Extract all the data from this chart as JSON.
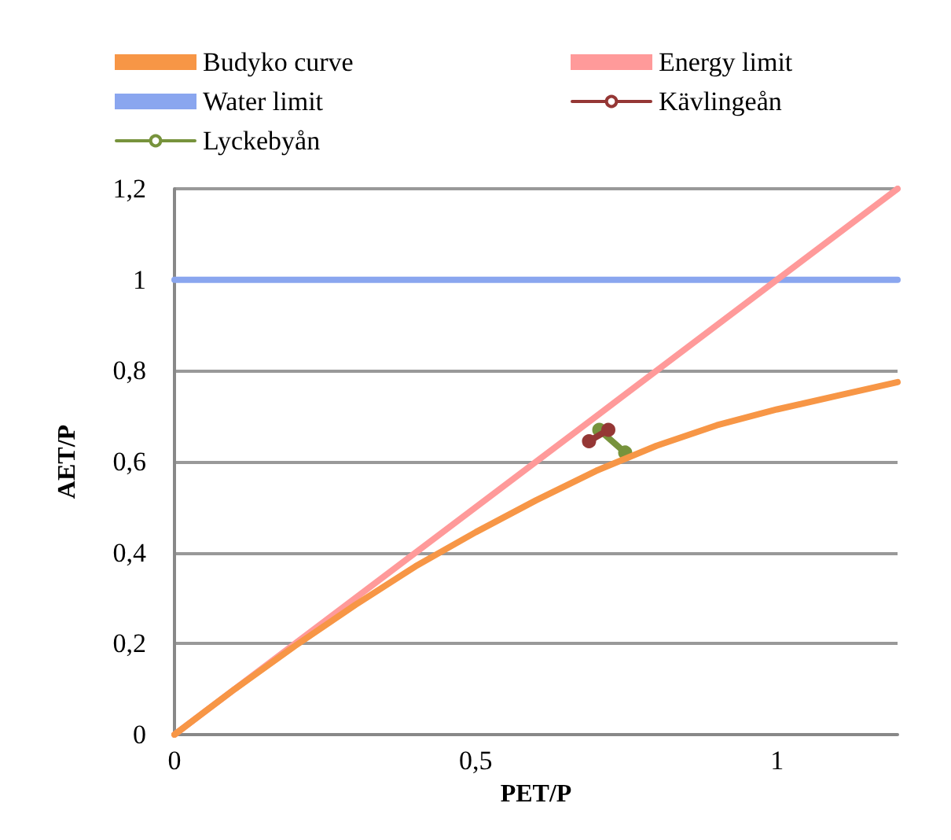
{
  "chart_data": {
    "type": "line",
    "xlabel": "PET/P",
    "ylabel": "AET/P",
    "xlim": [
      0,
      1.2
    ],
    "ylim": [
      0,
      1.2
    ],
    "xticks": [
      0,
      {
        "value": 0.5,
        "label": "0,5"
      },
      1
    ],
    "yticks": [
      0,
      {
        "value": 0.2,
        "label": "0,2"
      },
      {
        "value": 0.4,
        "label": "0,4"
      },
      {
        "value": 0.6,
        "label": "0,6"
      },
      {
        "value": 0.8,
        "label": "0,8"
      },
      1,
      {
        "value": 1.2,
        "label": "1,2"
      }
    ],
    "grid": "y",
    "legend": "top",
    "line_style": "solid",
    "series": [
      {
        "name": "Budyko curve",
        "color": "#f79646",
        "marker": "none",
        "x": [
          0,
          0.1,
          0.2,
          0.3,
          0.4,
          0.5,
          0.6,
          0.7,
          0.8,
          0.9,
          1.0,
          1.1,
          1.2
        ],
        "values": [
          0,
          0.1,
          0.195,
          0.285,
          0.37,
          0.445,
          0.515,
          0.58,
          0.635,
          0.68,
          0.715,
          0.745,
          0.775
        ]
      },
      {
        "name": "Energy limit",
        "color": "#ff9a9a",
        "marker": "none",
        "x": [
          0,
          1.2
        ],
        "values": [
          0,
          1.2
        ]
      },
      {
        "name": "Water limit",
        "color": "#8aa6ef",
        "marker": "none",
        "x": [
          0,
          1.2
        ],
        "values": [
          1,
          1
        ]
      },
      {
        "name": "Kävlingeån",
        "color": "#953735",
        "marker": "circle",
        "x": [
          0.688,
          0.72
        ],
        "values": [
          0.645,
          0.67
        ]
      },
      {
        "name": "Lyckebyån",
        "color": "#77933c",
        "marker": "circle",
        "x": [
          0.705,
          0.748
        ],
        "values": [
          0.67,
          0.62
        ]
      }
    ]
  }
}
